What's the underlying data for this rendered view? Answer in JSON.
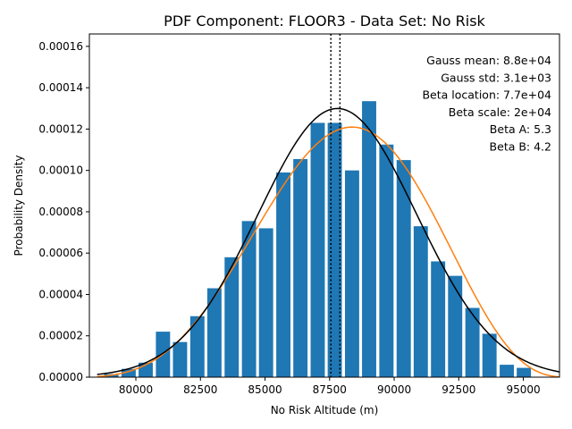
{
  "chart_data": {
    "type": "bar",
    "title": "PDF Component: FLOOR3 - Data Set: No Risk",
    "xlabel": "No Risk Altitude (m)",
    "ylabel": "Probability Density",
    "xlim": [
      78200,
      96400
    ],
    "ylim": [
      0,
      0.000166
    ],
    "xticks": [
      80000,
      82500,
      85000,
      87500,
      90000,
      92500,
      95000
    ],
    "xtick_labels": [
      "80000",
      "82500",
      "85000",
      "87500",
      "90000",
      "92500",
      "95000"
    ],
    "yticks": [
      0,
      2e-05,
      4e-05,
      6e-05,
      8e-05,
      0.0001,
      0.00012,
      0.00014,
      0.00016
    ],
    "ytick_labels": [
      "0.00000",
      "0.00002",
      "0.00004",
      "0.00006",
      "0.00008",
      "0.00010",
      "0.00012",
      "0.00014",
      "0.00016"
    ],
    "bar_width": 550,
    "bars": [
      {
        "x": 79050,
        "y": 1.5e-06
      },
      {
        "x": 79720,
        "y": 4e-06
      },
      {
        "x": 80380,
        "y": 7e-06
      },
      {
        "x": 81050,
        "y": 2.2e-05
      },
      {
        "x": 81710,
        "y": 1.7e-05
      },
      {
        "x": 82380,
        "y": 2.95e-05
      },
      {
        "x": 83040,
        "y": 4.3e-05
      },
      {
        "x": 83710,
        "y": 5.8e-05
      },
      {
        "x": 84380,
        "y": 7.55e-05
      },
      {
        "x": 85040,
        "y": 7.2e-05
      },
      {
        "x": 85710,
        "y": 9.9e-05
      },
      {
        "x": 86370,
        "y": 0.0001055
      },
      {
        "x": 87040,
        "y": 0.000123
      },
      {
        "x": 87700,
        "y": 0.000123
      },
      {
        "x": 88370,
        "y": 0.0001
      },
      {
        "x": 89030,
        "y": 0.0001335
      },
      {
        "x": 89700,
        "y": 0.0001125
      },
      {
        "x": 90370,
        "y": 0.000105
      },
      {
        "x": 91030,
        "y": 7.3e-05
      },
      {
        "x": 91700,
        "y": 5.6e-05
      },
      {
        "x": 92360,
        "y": 4.9e-05
      },
      {
        "x": 93030,
        "y": 3.35e-05
      },
      {
        "x": 93690,
        "y": 2.1e-05
      },
      {
        "x": 94360,
        "y": 6e-06
      },
      {
        "x": 95020,
        "y": 4.5e-06
      }
    ],
    "gauss": {
      "mean": 87800,
      "std": 3070
    },
    "beta": {
      "location": 76900,
      "scale": 20000,
      "a": 5.3,
      "b": 4.2
    },
    "curve_range": [
      78500,
      96400
    ],
    "vlines": [
      87550,
      87900
    ],
    "colors": {
      "bars": "#1f77b4",
      "gauss": "#000000",
      "beta": "#ff7f0e"
    },
    "annotations": [
      "Gauss mean: 8.8e+04",
      "Gauss std: 3.1e+03",
      "Beta location: 7.7e+04",
      "Beta scale: 2e+04",
      "Beta A: 5.3",
      "Beta B: 4.2"
    ]
  }
}
